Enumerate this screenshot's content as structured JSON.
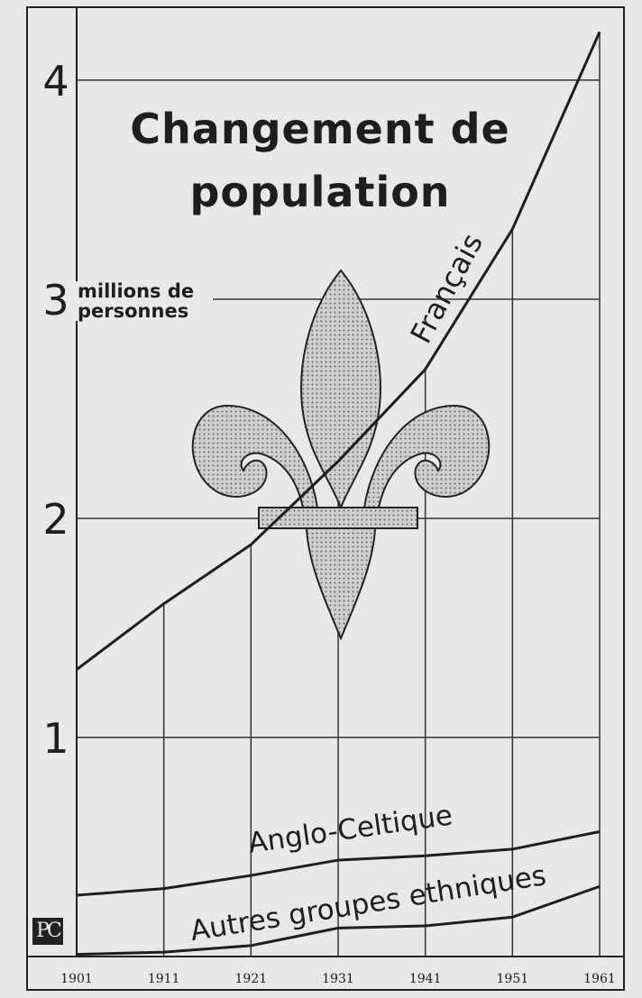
{
  "chart_data": {
    "type": "line",
    "title": "Changement de population",
    "y_label": "millions de personnes",
    "source_mark": "PC",
    "x": [
      1901,
      1911,
      1921,
      1931,
      1941,
      1951,
      1961
    ],
    "xlim": [
      1901,
      1961
    ],
    "xticks": [
      1901,
      1911,
      1921,
      1931,
      1941,
      1951,
      1961
    ],
    "ylim": [
      0,
      4.3
    ],
    "yticks": [
      1,
      2,
      3,
      4
    ],
    "grid": true,
    "series": [
      {
        "name": "Français",
        "color": "#1e1e1e",
        "values": [
          1.31,
          1.61,
          1.88,
          2.26,
          2.68,
          3.32,
          4.22
        ]
      },
      {
        "name": "Anglo-Celtique",
        "color": "#1e1e1e",
        "values": [
          0.28,
          0.31,
          0.37,
          0.44,
          0.46,
          0.49,
          0.57
        ]
      },
      {
        "name": "Autres groupes ethniques",
        "color": "#1e1e1e",
        "values": [
          0.01,
          0.02,
          0.05,
          0.13,
          0.14,
          0.18,
          0.32
        ]
      }
    ]
  }
}
